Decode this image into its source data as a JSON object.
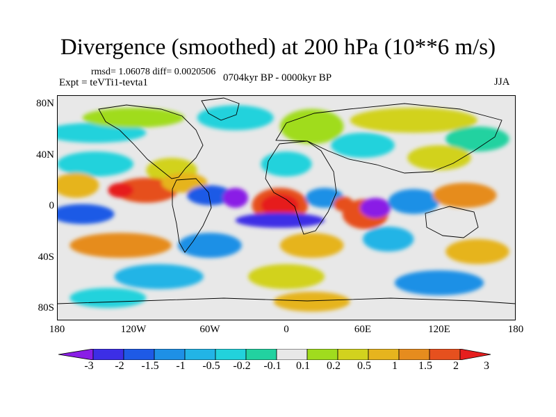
{
  "title": "Divergence (smoothed) at 200 hPa (10**6 m/s)",
  "stats": "rmsd= 1.06078 diff= 0.0020506",
  "experiment": "Expt = teVTi1-tevta1",
  "period": "0704kyr BP - 0000kyr BP",
  "season": "JJA",
  "y_axis": {
    "ticks": [
      "80N",
      "40N",
      "0",
      "40S",
      "80S"
    ]
  },
  "x_axis": {
    "ticks": [
      "180",
      "120W",
      "60W",
      "0",
      "60E",
      "120E",
      "180"
    ]
  },
  "colorbar": {
    "labels": [
      "-3",
      "-2",
      "-1.5",
      "-1",
      "-0.5",
      "-0.2",
      "-0.1",
      "0.1",
      "0.2",
      "0.5",
      "1",
      "1.5",
      "2",
      "3"
    ],
    "colors": [
      "#8a1ee6",
      "#3c2ee6",
      "#1e5ae6",
      "#1e90e6",
      "#22b4e6",
      "#22d2dc",
      "#22d2a0",
      "#e8e8e8",
      "#a0dc1e",
      "#d2d21e",
      "#e6b41e",
      "#e68c1e",
      "#e6501e",
      "#e61e1e"
    ]
  },
  "field": {
    "background": "#e8e8e8",
    "blobs": [
      {
        "lon": -150,
        "lat": 60,
        "rx": 40,
        "ry": 8,
        "c": 5
      },
      {
        "lon": -120,
        "lat": 72,
        "rx": 40,
        "ry": 8,
        "c": 8
      },
      {
        "lon": -40,
        "lat": 72,
        "rx": 30,
        "ry": 10,
        "c": 5
      },
      {
        "lon": 20,
        "lat": 65,
        "rx": 25,
        "ry": 14,
        "c": 8
      },
      {
        "lon": 100,
        "lat": 70,
        "rx": 50,
        "ry": 10,
        "c": 9
      },
      {
        "lon": 150,
        "lat": 55,
        "rx": 25,
        "ry": 10,
        "c": 6
      },
      {
        "lon": 60,
        "lat": 50,
        "rx": 25,
        "ry": 10,
        "c": 5
      },
      {
        "lon": -150,
        "lat": 35,
        "rx": 30,
        "ry": 10,
        "c": 5
      },
      {
        "lon": -90,
        "lat": 30,
        "rx": 20,
        "ry": 10,
        "c": 9
      },
      {
        "lon": 0,
        "lat": 35,
        "rx": 20,
        "ry": 10,
        "c": 5
      },
      {
        "lon": 120,
        "lat": 40,
        "rx": 25,
        "ry": 10,
        "c": 9
      },
      {
        "lon": -165,
        "lat": 18,
        "rx": 18,
        "ry": 10,
        "c": 10
      },
      {
        "lon": -110,
        "lat": 14,
        "rx": 25,
        "ry": 10,
        "c": 12
      },
      {
        "lon": -130,
        "lat": 14,
        "rx": 10,
        "ry": 6,
        "c": 13
      },
      {
        "lon": -80,
        "lat": 20,
        "rx": 18,
        "ry": 8,
        "c": 10
      },
      {
        "lon": -60,
        "lat": 10,
        "rx": 18,
        "ry": 8,
        "c": 2
      },
      {
        "lon": -40,
        "lat": 8,
        "rx": 10,
        "ry": 8,
        "c": 0
      },
      {
        "lon": -5,
        "lat": 2,
        "rx": 22,
        "ry": 14,
        "c": 12
      },
      {
        "lon": -5,
        "lat": 2,
        "rx": 15,
        "ry": 9,
        "c": 13
      },
      {
        "lon": -5,
        "lat": -10,
        "rx": 35,
        "ry": 6,
        "c": 1
      },
      {
        "lon": 30,
        "lat": 8,
        "rx": 15,
        "ry": 8,
        "c": 3
      },
      {
        "lon": 45,
        "lat": 3,
        "rx": 8,
        "ry": 6,
        "c": 12
      },
      {
        "lon": 62,
        "lat": -5,
        "rx": 18,
        "ry": 12,
        "c": 12
      },
      {
        "lon": 70,
        "lat": 0,
        "rx": 12,
        "ry": 8,
        "c": 0
      },
      {
        "lon": 100,
        "lat": 5,
        "rx": 20,
        "ry": 10,
        "c": 3
      },
      {
        "lon": 140,
        "lat": 10,
        "rx": 25,
        "ry": 10,
        "c": 11
      },
      {
        "lon": -160,
        "lat": -5,
        "rx": 25,
        "ry": 8,
        "c": 2
      },
      {
        "lon": -130,
        "lat": -30,
        "rx": 40,
        "ry": 10,
        "c": 11
      },
      {
        "lon": -60,
        "lat": -30,
        "rx": 25,
        "ry": 10,
        "c": 3
      },
      {
        "lon": 20,
        "lat": -30,
        "rx": 25,
        "ry": 10,
        "c": 10
      },
      {
        "lon": 80,
        "lat": -25,
        "rx": 20,
        "ry": 10,
        "c": 4
      },
      {
        "lon": 150,
        "lat": -35,
        "rx": 25,
        "ry": 10,
        "c": 10
      },
      {
        "lon": -100,
        "lat": -55,
        "rx": 35,
        "ry": 10,
        "c": 4
      },
      {
        "lon": 0,
        "lat": -55,
        "rx": 30,
        "ry": 10,
        "c": 9
      },
      {
        "lon": 120,
        "lat": -60,
        "rx": 35,
        "ry": 10,
        "c": 3
      },
      {
        "lon": -140,
        "lat": -72,
        "rx": 30,
        "ry": 8,
        "c": 5
      },
      {
        "lon": 20,
        "lat": -75,
        "rx": 30,
        "ry": 8,
        "c": 10
      }
    ]
  }
}
